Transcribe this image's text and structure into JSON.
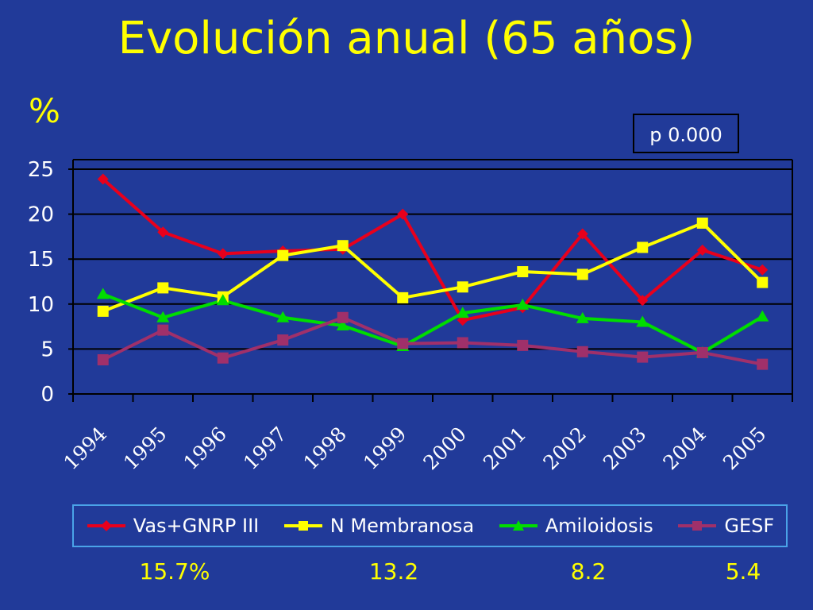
{
  "header": {
    "title": "Evolución anual (65 años)"
  },
  "unit_label": "%",
  "p_value": "p 0.000",
  "colors": {
    "background": "#213a99",
    "title": "#ffff00",
    "series": [
      "#e8001c",
      "#ffff00",
      "#00dd00",
      "#a0306a"
    ]
  },
  "chart_data": {
    "type": "line",
    "title": "Evolución anual (65 años)",
    "ylabel": "%",
    "xlabel": "",
    "x": [
      "1994",
      "1995",
      "1996",
      "1997",
      "1998",
      "1999",
      "2000",
      "2001",
      "2002",
      "2003",
      "2004",
      "2005"
    ],
    "ylim": [
      0,
      25
    ],
    "yticks": [
      "0",
      "5",
      "10",
      "15",
      "20",
      "25"
    ],
    "grid": "horizontal",
    "legend": "bottom",
    "series": [
      {
        "name": "Vas+GNRP III",
        "marker": "diamond",
        "values": [
          23.9,
          18.0,
          15.6,
          15.9,
          16.1,
          20.0,
          8.2,
          9.6,
          17.8,
          10.4,
          16.0,
          13.8
        ]
      },
      {
        "name": "N Membranosa",
        "marker": "square",
        "values": [
          9.2,
          11.8,
          10.8,
          15.4,
          16.5,
          10.7,
          11.9,
          13.6,
          13.3,
          16.3,
          19.0,
          12.4
        ]
      },
      {
        "name": "Amiloidosis",
        "marker": "triangle",
        "values": [
          11.1,
          8.5,
          10.4,
          8.5,
          7.6,
          5.3,
          9.0,
          9.9,
          8.4,
          8.0,
          4.6,
          8.6
        ]
      },
      {
        "name": "GESF",
        "marker": "square",
        "values": [
          3.8,
          7.1,
          4.0,
          6.0,
          8.5,
          5.6,
          5.7,
          5.4,
          4.7,
          4.1,
          4.6,
          3.3
        ]
      }
    ]
  },
  "summary": [
    "15.7%",
    "13.2",
    "8.2",
    "5.4"
  ]
}
